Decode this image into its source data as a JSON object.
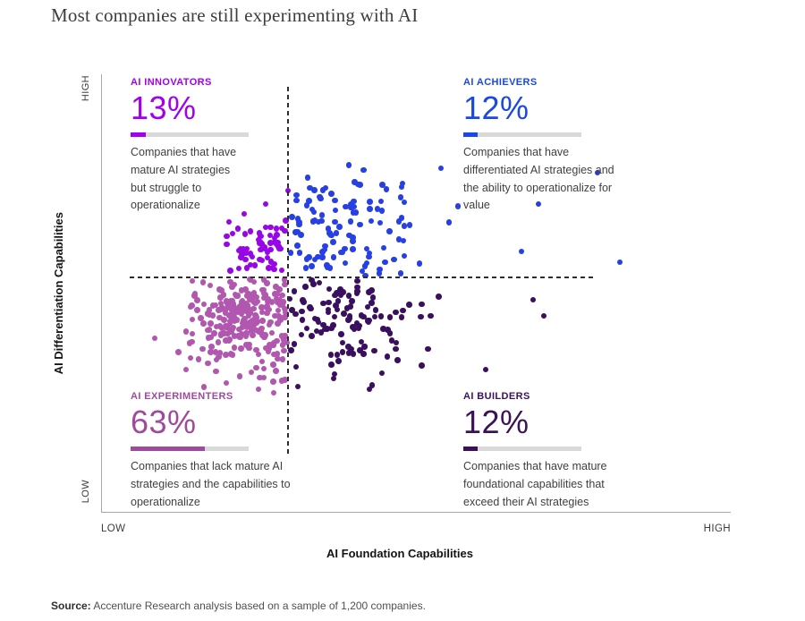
{
  "title": "Most companies are still experimenting with AI",
  "axes": {
    "y_title": "AI Differentiation Capabilities",
    "x_title": "AI Foundation Capabilities",
    "y_high": "HIGH",
    "y_low": "LOW",
    "x_low": "LOW",
    "x_high": "HIGH"
  },
  "quadrants": [
    {
      "id": "innovators",
      "label": "AI INNOVATORS",
      "value": "13%",
      "pct": 13,
      "color": "#a100f0",
      "desc": "Companies that have mature AI strategies but struggle to operationalize"
    },
    {
      "id": "achievers",
      "label": "AI ACHIEVERS",
      "value": "12%",
      "pct": 12,
      "color": "#1949e0",
      "desc": "Companies that have differentiated AI strategies and the ability to operationalize for value"
    },
    {
      "id": "experimenters",
      "label": "AI EXPERIMENTERS",
      "value": "63%",
      "pct": 63,
      "color": "#a04a9d",
      "desc": "Companies that lack mature AI strategies and the capabilities to operationalize"
    },
    {
      "id": "builders",
      "label": "AI BUILDERS",
      "value": "12%",
      "pct": 12,
      "color": "#3b1257",
      "desc": "Companies that have mature foundational capabilities that exceed their AI strategies"
    }
  ],
  "source": {
    "label": "Source:",
    "text": " Accenture Research analysis based on a sample of 1,200 companies."
  },
  "chart_data": {
    "type": "scatter",
    "title": "Most companies are still experimenting with AI",
    "xlabel": "AI Foundation Capabilities",
    "ylabel": "AI Differentiation Capabilities",
    "x_range_labels": [
      "LOW",
      "HIGH"
    ],
    "y_range_labels": [
      "LOW",
      "HIGH"
    ],
    "grid": false,
    "legend": "none",
    "coords_note": "pixels relative to plot area 704x490, y increases downward",
    "divider_x": 209,
    "divider_y": 227,
    "seed": 7,
    "series": [
      {
        "id": "experimenters",
        "name": "AI Experimenters",
        "share_pct": 63,
        "dot_color": "#b157b0",
        "cluster": {
          "count": 255,
          "cx": 167,
          "cy": 272,
          "sx": 31,
          "sy": 33,
          "xmin": 52,
          "xmax": 207,
          "ymin": 229,
          "ymax": 352
        },
        "outliers": [
          [
            182,
            329
          ],
          [
            176,
            352
          ],
          [
            193,
            356
          ],
          [
            208,
            300
          ],
          [
            60,
            295
          ],
          [
            95,
            330
          ],
          [
            100,
            260
          ],
          [
            140,
            345
          ]
        ]
      },
      {
        "id": "builders",
        "name": "AI Builders",
        "share_pct": 12,
        "dot_color": "#3a0f60",
        "cluster": {
          "count": 112,
          "cx": 257,
          "cy": 272,
          "sx": 42,
          "sy": 33,
          "xmin": 211,
          "xmax": 440,
          "ymin": 229,
          "ymax": 355
        },
        "outliers": [
          [
            483,
            252
          ],
          [
            495,
            270
          ],
          [
            430,
            330
          ],
          [
            220,
            349
          ],
          [
            300,
            352
          ],
          [
            260,
            340
          ],
          [
            330,
            300
          ]
        ]
      },
      {
        "id": "innovators",
        "name": "AI Innovators",
        "share_pct": 13,
        "dot_color": "#9707e6",
        "cluster": {
          "count": 60,
          "cx": 182,
          "cy": 199,
          "sx": 21,
          "sy": 17,
          "xmin": 118,
          "xmax": 207,
          "ymin": 142,
          "ymax": 226
        },
        "outliers": [
          [
            209,
            130
          ],
          [
            160,
            156
          ],
          [
            143,
            165
          ]
        ]
      },
      {
        "id": "achievers",
        "name": "AI Achievers",
        "share_pct": 12,
        "dot_color": "#2640e4",
        "cluster": {
          "count": 112,
          "cx": 257,
          "cy": 182,
          "sx": 46,
          "sy": 38,
          "xmin": 211,
          "xmax": 430,
          "ymin": 100,
          "ymax": 226
        },
        "outliers": [
          [
            555,
            110
          ],
          [
            470,
            198
          ],
          [
            580,
            210
          ],
          [
            489,
            145
          ],
          [
            380,
            105
          ],
          [
            337,
            122
          ]
        ]
      }
    ]
  }
}
